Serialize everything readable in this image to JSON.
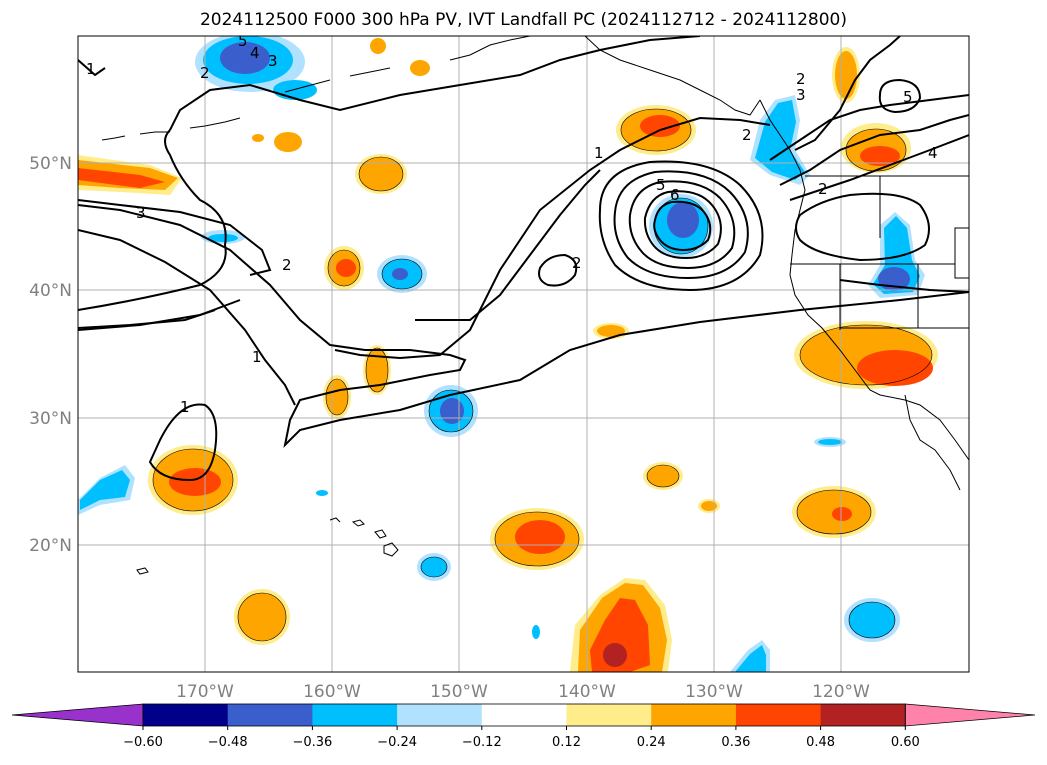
{
  "title": "2024112500 F000 300 hPa PV, IVT Landfall PC (2024112712 - 2024112800)",
  "lat_labels": [
    "50°N",
    "40°N",
    "30°N",
    "20°N"
  ],
  "lon_labels": [
    "170°W",
    "160°W",
    "150°W",
    "140°W",
    "130°W",
    "120°W"
  ],
  "contour_labels": [
    "1",
    "2",
    "3",
    "4",
    "5",
    "1",
    "2",
    "3",
    "1",
    "2",
    "1",
    "2",
    "5",
    "6",
    "2",
    "3",
    "2",
    "5",
    "4"
  ],
  "colorbar": {
    "ticks": [
      "−0.60",
      "−0.48",
      "−0.36",
      "−0.24",
      "−0.12",
      "0.12",
      "0.24",
      "0.36",
      "0.48",
      "0.60"
    ],
    "colors": [
      "#9932cc",
      "#00008b",
      "#3a5fcd",
      "#00bfff",
      "#b0e2ff",
      "#ffffff",
      "#ffec8b",
      "#ffa500",
      "#ff4500",
      "#b22222",
      "#ff82ab"
    ]
  },
  "colors": {
    "land_outline": "#000000",
    "grid": "#b0b0b0"
  }
}
